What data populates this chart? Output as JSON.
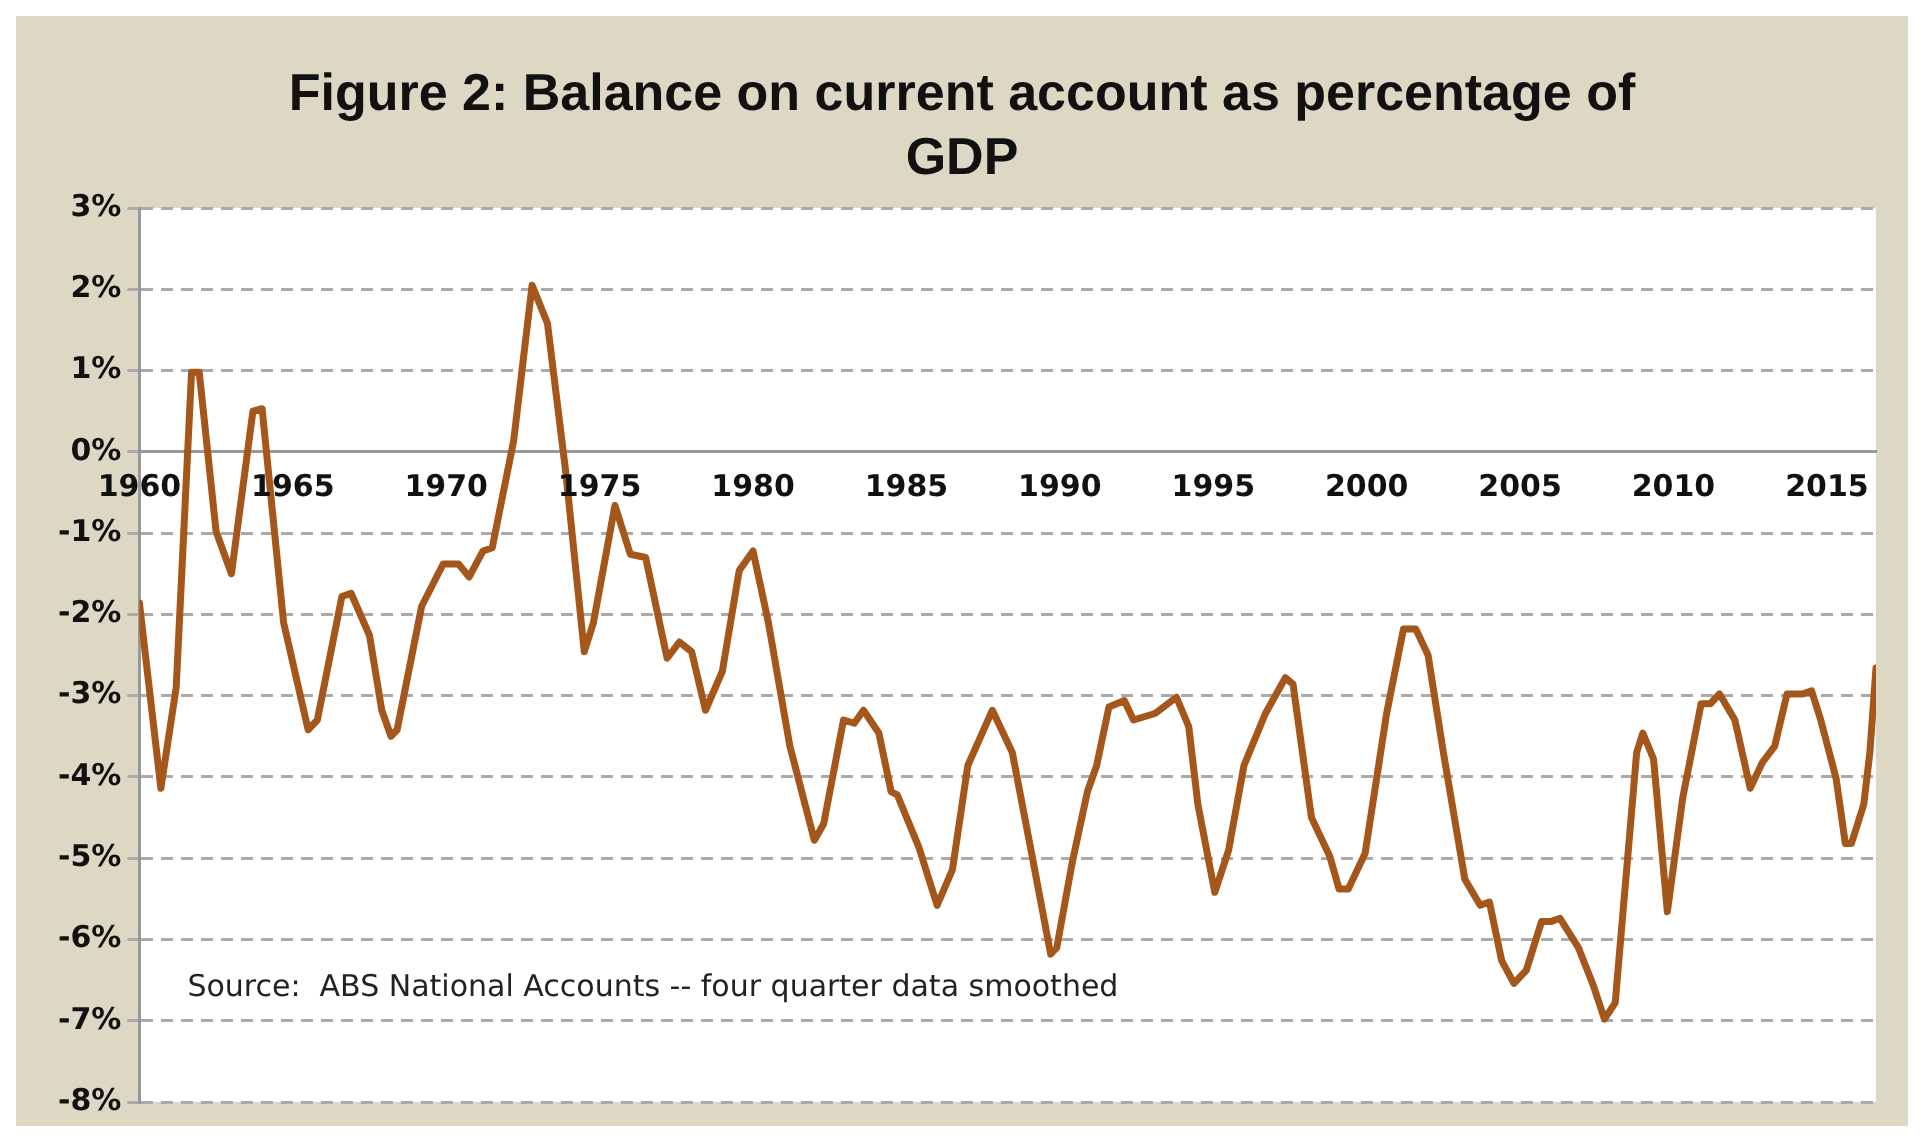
{
  "chart_data": {
    "type": "line",
    "title": "Figure 2: Balance on current account as percentage of GDP",
    "annotations": [
      "Source:  ABS National Accounts -- four quarter data smoothed"
    ],
    "x": [
      1960.0,
      1960.7,
      1961.2,
      1961.7,
      1961.95,
      1962.5,
      1963.0,
      1963.7,
      1964.0,
      1964.7,
      1965.5,
      1965.8,
      1966.6,
      1966.9,
      1967.5,
      1967.9,
      1968.2,
      1968.4,
      1968.8,
      1969.2,
      1969.9,
      1970.4,
      1970.75,
      1971.2,
      1971.5,
      1972.2,
      1972.8,
      1973.3,
      1973.9,
      1974.5,
      1974.8,
      1975.5,
      1976.0,
      1976.5,
      1977.2,
      1977.6,
      1978.0,
      1978.45,
      1979.0,
      1979.55,
      1980.0,
      1980.5,
      1981.2,
      1982.0,
      1982.3,
      1982.95,
      1983.3,
      1983.6,
      1984.1,
      1984.5,
      1984.7,
      1985.4,
      1986.0,
      1986.5,
      1987.0,
      1987.8,
      1988.45,
      1989.1,
      1989.7,
      1989.9,
      1990.4,
      1990.9,
      1991.2,
      1991.6,
      1992.1,
      1992.4,
      1993.1,
      1993.8,
      1994.2,
      1994.5,
      1995.05,
      1995.5,
      1996.0,
      1996.7,
      1997.35,
      1997.6,
      1998.2,
      1998.8,
      1999.1,
      1999.4,
      1999.95,
      2000.65,
      2001.2,
      2001.6,
      2002.0,
      2002.5,
      2003.2,
      2003.7,
      2004.0,
      2004.4,
      2004.8,
      2005.2,
      2005.7,
      2006.0,
      2006.3,
      2006.9,
      2007.4,
      2007.75,
      2008.1,
      2008.8,
      2009.0,
      2009.35,
      2009.8,
      2010.3,
      2010.9,
      2011.2,
      2011.5,
      2012.0,
      2012.5,
      2012.9,
      2013.3,
      2013.7,
      2014.2,
      2014.5,
      2014.8,
      2015.3,
      2015.6,
      2015.8,
      2016.2,
      2016.4,
      2016.6
    ],
    "series": [
      {
        "color": "#a5561a",
        "values": [
          -1.86,
          -4.14,
          -2.9,
          0.98,
          0.98,
          -0.98,
          -1.5,
          0.5,
          0.53,
          -2.1,
          -3.42,
          -3.3,
          -1.78,
          -1.74,
          -2.26,
          -3.18,
          -3.5,
          -3.42,
          -2.66,
          -1.9,
          -1.38,
          -1.38,
          -1.54,
          -1.22,
          -1.18,
          0.14,
          2.05,
          1.58,
          -0.26,
          -2.46,
          -2.1,
          -0.66,
          -1.26,
          -1.3,
          -2.54,
          -2.34,
          -2.46,
          -3.18,
          -2.7,
          -1.46,
          -1.22,
          -2.1,
          -3.62,
          -4.78,
          -4.58,
          -3.3,
          -3.34,
          -3.18,
          -3.46,
          -4.18,
          -4.22,
          -4.86,
          -5.58,
          -5.14,
          -3.86,
          -3.18,
          -3.7,
          -4.98,
          -6.18,
          -6.1,
          -5.06,
          -4.18,
          -3.86,
          -3.14,
          -3.06,
          -3.3,
          -3.22,
          -3.02,
          -3.38,
          -4.34,
          -5.42,
          -4.9,
          -3.86,
          -3.22,
          -2.78,
          -2.86,
          -4.5,
          -4.98,
          -5.38,
          -5.38,
          -4.94,
          -3.22,
          -2.18,
          -2.18,
          -2.5,
          -3.7,
          -5.26,
          -5.58,
          -5.54,
          -6.26,
          -6.54,
          -6.38,
          -5.78,
          -5.78,
          -5.74,
          -6.1,
          -6.58,
          -6.98,
          -6.78,
          -3.7,
          -3.46,
          -3.78,
          -5.66,
          -4.26,
          -3.1,
          -3.1,
          -2.98,
          -3.3,
          -4.14,
          -3.82,
          -3.62,
          -2.98,
          -2.98,
          -2.94,
          -3.3,
          -4.02,
          -4.82,
          -4.82,
          -4.34,
          -3.7,
          -2.66
        ]
      }
    ],
    "xlim": [
      1960,
      2016.6
    ],
    "xticks": [
      1960,
      1965,
      1970,
      1975,
      1980,
      1985,
      1990,
      1995,
      2000,
      2005,
      2010,
      2015
    ],
    "ylim": [
      -8,
      3
    ],
    "yticks": [
      {
        "value": 3,
        "label": "3%"
      },
      {
        "value": 2,
        "label": "2%"
      },
      {
        "value": 1,
        "label": "1%"
      },
      {
        "value": 0,
        "label": "0%"
      },
      {
        "value": -1,
        "label": "-1%"
      },
      {
        "value": -2,
        "label": "-2%"
      },
      {
        "value": -3,
        "label": "-3%"
      },
      {
        "value": -4,
        "label": "-4%"
      },
      {
        "value": -5,
        "label": "-5%"
      },
      {
        "value": -6,
        "label": "-6%"
      },
      {
        "value": -7,
        "label": "-7%"
      },
      {
        "value": -8,
        "label": "-8%"
      }
    ],
    "grid": "y",
    "legend": false,
    "marker": "none",
    "line_style": "solid"
  }
}
